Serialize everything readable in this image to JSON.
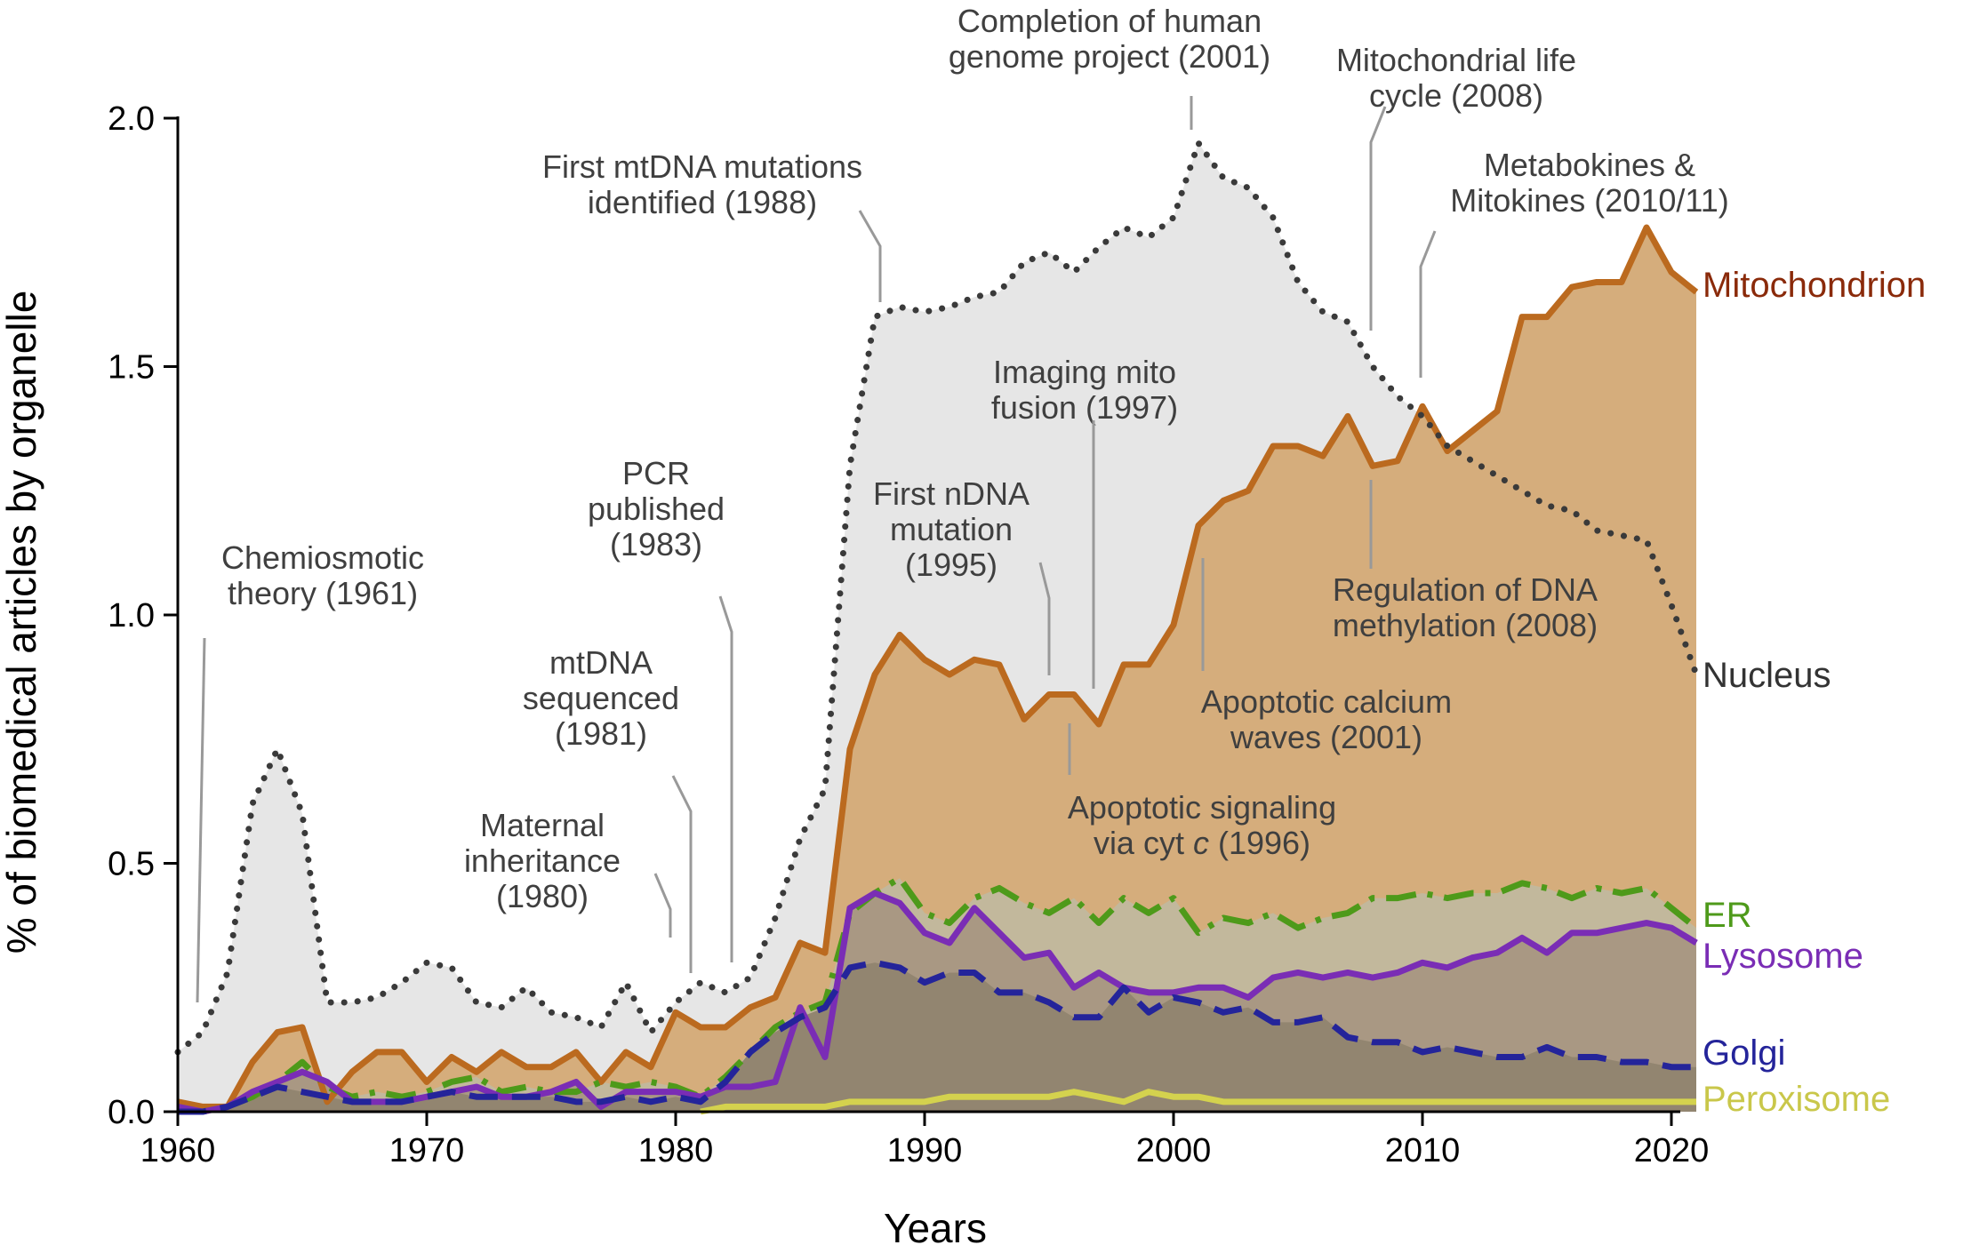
{
  "chart_data": {
    "type": "area",
    "xlabel": "Years",
    "ylabel": "% of biomedical articles by organelle",
    "xlim": [
      1960,
      2021
    ],
    "ylim": [
      0,
      2.0
    ],
    "x_ticks": [
      "1960",
      "1970",
      "1980",
      "1990",
      "2000",
      "2010",
      "2020"
    ],
    "y_ticks": [
      "0.0",
      "0.5",
      "1.0",
      "1.5",
      "2.0"
    ],
    "grid": false,
    "series": [
      {
        "name": "Nucleus",
        "color": "#3a3a3a",
        "style": "dotted",
        "fill": "#e6e6e6",
        "x": [
          1960,
          1961,
          1962,
          1963,
          1964,
          1965,
          1966,
          1967,
          1968,
          1969,
          1970,
          1971,
          1972,
          1973,
          1974,
          1975,
          1976,
          1977,
          1978,
          1979,
          1980,
          1981,
          1982,
          1983,
          1984,
          1985,
          1986,
          1987,
          1988,
          1989,
          1990,
          1991,
          1992,
          1993,
          1994,
          1995,
          1996,
          1997,
          1998,
          1999,
          2000,
          2001,
          2002,
          2003,
          2004,
          2005,
          2006,
          2007,
          2008,
          2009,
          2010,
          2011,
          2012,
          2013,
          2014,
          2015,
          2016,
          2017,
          2018,
          2019,
          2020,
          2021
        ],
        "values": [
          0.12,
          0.16,
          0.28,
          0.62,
          0.73,
          0.6,
          0.22,
          0.22,
          0.23,
          0.26,
          0.3,
          0.29,
          0.22,
          0.21,
          0.25,
          0.2,
          0.19,
          0.17,
          0.26,
          0.16,
          0.22,
          0.26,
          0.24,
          0.27,
          0.39,
          0.55,
          0.65,
          1.3,
          1.6,
          1.62,
          1.61,
          1.62,
          1.64,
          1.65,
          1.71,
          1.73,
          1.69,
          1.74,
          1.78,
          1.76,
          1.8,
          1.95,
          1.88,
          1.86,
          1.8,
          1.67,
          1.61,
          1.59,
          1.5,
          1.44,
          1.4,
          1.34,
          1.31,
          1.28,
          1.25,
          1.22,
          1.21,
          1.17,
          1.16,
          1.15,
          1.02,
          0.88
        ]
      },
      {
        "name": "Mitochondrion",
        "color": "#bb6a1f",
        "style": "solid",
        "fill": "#d5ad7c",
        "x": [
          1960,
          1961,
          1962,
          1963,
          1964,
          1965,
          1966,
          1967,
          1968,
          1969,
          1970,
          1971,
          1972,
          1973,
          1974,
          1975,
          1976,
          1977,
          1978,
          1979,
          1980,
          1981,
          1982,
          1983,
          1984,
          1985,
          1986,
          1987,
          1988,
          1989,
          1990,
          1991,
          1992,
          1993,
          1994,
          1995,
          1996,
          1997,
          1998,
          1999,
          2000,
          2001,
          2002,
          2003,
          2004,
          2005,
          2006,
          2007,
          2008,
          2009,
          2010,
          2011,
          2012,
          2013,
          2014,
          2015,
          2016,
          2017,
          2018,
          2019,
          2020,
          2021
        ],
        "values": [
          0.02,
          0.01,
          0.01,
          0.1,
          0.16,
          0.17,
          0.02,
          0.08,
          0.12,
          0.12,
          0.06,
          0.11,
          0.08,
          0.12,
          0.09,
          0.09,
          0.12,
          0.06,
          0.12,
          0.09,
          0.2,
          0.17,
          0.17,
          0.21,
          0.23,
          0.34,
          0.32,
          0.73,
          0.88,
          0.96,
          0.91,
          0.88,
          0.91,
          0.9,
          0.79,
          0.84,
          0.84,
          0.78,
          0.9,
          0.9,
          0.98,
          1.18,
          1.23,
          1.25,
          1.34,
          1.34,
          1.32,
          1.4,
          1.3,
          1.31,
          1.42,
          1.33,
          1.37,
          1.41,
          1.6,
          1.6,
          1.66,
          1.67,
          1.67,
          1.78,
          1.69,
          1.65
        ]
      },
      {
        "name": "ER",
        "color": "#4e9a1a",
        "style": "dashdot",
        "fill": "#c2b89c",
        "x": [
          1960,
          1961,
          1962,
          1963,
          1964,
          1965,
          1966,
          1967,
          1968,
          1969,
          1970,
          1971,
          1972,
          1973,
          1974,
          1975,
          1976,
          1977,
          1978,
          1979,
          1980,
          1981,
          1982,
          1983,
          1984,
          1985,
          1986,
          1987,
          1988,
          1989,
          1990,
          1991,
          1992,
          1993,
          1994,
          1995,
          1996,
          1997,
          1998,
          1999,
          2000,
          2001,
          2002,
          2003,
          2004,
          2005,
          2006,
          2007,
          2008,
          2009,
          2010,
          2011,
          2012,
          2013,
          2014,
          2015,
          2016,
          2017,
          2018,
          2019,
          2020,
          2021
        ],
        "values": [
          0.0,
          0.0,
          0.01,
          0.03,
          0.06,
          0.1,
          0.05,
          0.03,
          0.04,
          0.03,
          0.04,
          0.06,
          0.07,
          0.04,
          0.05,
          0.04,
          0.04,
          0.06,
          0.05,
          0.06,
          0.05,
          0.03,
          0.07,
          0.12,
          0.17,
          0.2,
          0.22,
          0.4,
          0.44,
          0.47,
          0.4,
          0.38,
          0.43,
          0.45,
          0.42,
          0.4,
          0.43,
          0.38,
          0.43,
          0.4,
          0.43,
          0.36,
          0.39,
          0.38,
          0.4,
          0.37,
          0.39,
          0.4,
          0.43,
          0.43,
          0.44,
          0.43,
          0.44,
          0.44,
          0.46,
          0.45,
          0.43,
          0.45,
          0.44,
          0.45,
          0.41,
          0.37
        ]
      },
      {
        "name": "Lysosome",
        "color": "#7a2db5",
        "style": "solid",
        "fill": "#a99883",
        "x": [
          1960,
          1961,
          1962,
          1963,
          1964,
          1965,
          1966,
          1967,
          1968,
          1969,
          1970,
          1971,
          1972,
          1973,
          1974,
          1975,
          1976,
          1977,
          1978,
          1979,
          1980,
          1981,
          1982,
          1983,
          1984,
          1985,
          1986,
          1987,
          1988,
          1989,
          1990,
          1991,
          1992,
          1993,
          1994,
          1995,
          1996,
          1997,
          1998,
          1999,
          2000,
          2001,
          2002,
          2003,
          2004,
          2005,
          2006,
          2007,
          2008,
          2009,
          2010,
          2011,
          2012,
          2013,
          2014,
          2015,
          2016,
          2017,
          2018,
          2019,
          2020,
          2021
        ],
        "values": [
          0.01,
          0.0,
          0.01,
          0.04,
          0.06,
          0.08,
          0.06,
          0.02,
          0.02,
          0.02,
          0.03,
          0.04,
          0.05,
          0.03,
          0.03,
          0.04,
          0.06,
          0.01,
          0.04,
          0.04,
          0.04,
          0.03,
          0.05,
          0.05,
          0.06,
          0.21,
          0.11,
          0.41,
          0.44,
          0.42,
          0.36,
          0.34,
          0.41,
          0.36,
          0.31,
          0.32,
          0.25,
          0.28,
          0.25,
          0.24,
          0.24,
          0.25,
          0.25,
          0.23,
          0.27,
          0.28,
          0.27,
          0.28,
          0.27,
          0.28,
          0.3,
          0.29,
          0.31,
          0.32,
          0.35,
          0.32,
          0.36,
          0.36,
          0.37,
          0.38,
          0.37,
          0.34
        ]
      },
      {
        "name": "Golgi",
        "color": "#24249a",
        "style": "dashed",
        "fill": "#928570",
        "x": [
          1960,
          1961,
          1962,
          1963,
          1964,
          1965,
          1966,
          1967,
          1968,
          1969,
          1970,
          1971,
          1972,
          1973,
          1974,
          1975,
          1976,
          1977,
          1978,
          1979,
          1980,
          1981,
          1982,
          1983,
          1984,
          1985,
          1986,
          1987,
          1988,
          1989,
          1990,
          1991,
          1992,
          1993,
          1994,
          1995,
          1996,
          1997,
          1998,
          1999,
          2000,
          2001,
          2002,
          2003,
          2004,
          2005,
          2006,
          2007,
          2008,
          2009,
          2010,
          2011,
          2012,
          2013,
          2014,
          2015,
          2016,
          2017,
          2018,
          2019,
          2020,
          2021
        ],
        "values": [
          0.0,
          0.0,
          0.01,
          0.03,
          0.05,
          0.04,
          0.03,
          0.02,
          0.02,
          0.02,
          0.03,
          0.04,
          0.03,
          0.03,
          0.03,
          0.03,
          0.02,
          0.02,
          0.03,
          0.02,
          0.03,
          0.02,
          0.06,
          0.12,
          0.16,
          0.19,
          0.21,
          0.29,
          0.3,
          0.29,
          0.26,
          0.28,
          0.28,
          0.24,
          0.24,
          0.22,
          0.19,
          0.19,
          0.25,
          0.2,
          0.23,
          0.22,
          0.2,
          0.21,
          0.18,
          0.18,
          0.19,
          0.15,
          0.14,
          0.14,
          0.12,
          0.13,
          0.12,
          0.11,
          0.11,
          0.13,
          0.11,
          0.11,
          0.1,
          0.1,
          0.09,
          0.09
        ]
      },
      {
        "name": "Peroxisome",
        "color": "#d4d24e",
        "style": "solid",
        "fill": "none",
        "x": [
          1981,
          1982,
          1983,
          1984,
          1985,
          1986,
          1987,
          1988,
          1989,
          1990,
          1991,
          1992,
          1993,
          1994,
          1995,
          1996,
          1997,
          1998,
          1999,
          2000,
          2001,
          2002,
          2003,
          2004,
          2005,
          2006,
          2007,
          2008,
          2009,
          2010,
          2011,
          2012,
          2013,
          2014,
          2015,
          2016,
          2017,
          2018,
          2019,
          2020,
          2021
        ],
        "values": [
          0.0,
          0.01,
          0.01,
          0.01,
          0.01,
          0.01,
          0.02,
          0.02,
          0.02,
          0.02,
          0.03,
          0.03,
          0.03,
          0.03,
          0.03,
          0.04,
          0.03,
          0.02,
          0.04,
          0.03,
          0.03,
          0.02,
          0.02,
          0.02,
          0.02,
          0.02,
          0.02,
          0.02,
          0.02,
          0.02,
          0.02,
          0.02,
          0.02,
          0.02,
          0.02,
          0.02,
          0.02,
          0.02,
          0.02,
          0.02,
          0.02
        ]
      }
    ],
    "annotations": [
      {
        "lines": [
          "Chemiosmotic",
          "theory (1961)"
        ],
        "year": 1961,
        "y": 0.2
      },
      {
        "lines": [
          "Maternal",
          "inheritance",
          "(1980)"
        ],
        "year": 1980,
        "y": 0.22
      },
      {
        "lines": [
          "mtDNA",
          "sequenced",
          "(1981)"
        ],
        "year": 1981,
        "y": 0.26
      },
      {
        "lines": [
          "PCR",
          "published",
          "(1983)"
        ],
        "year": 1982.5,
        "y": 0.28
      },
      {
        "lines": [
          "First mtDNA mutations",
          "identified (1988)"
        ],
        "year": 1988,
        "y": 1.6
      },
      {
        "lines": [
          "Completion of human",
          "genome project (2001)"
        ],
        "year": 2001,
        "y": 1.97
      },
      {
        "lines": [
          "First nDNA",
          "mutation",
          "(1995)"
        ],
        "year": 1995,
        "y": 0.88
      },
      {
        "lines": [
          "Imaging mito",
          "fusion (1997)"
        ],
        "year": 1997,
        "y": 0.85
      },
      {
        "lines": [
          "Mitochondrial life",
          "cycle (2008)"
        ],
        "year": 2008,
        "y": 1.6
      },
      {
        "lines": [
          "Metabokines &",
          "Mitokines (2010/11)"
        ],
        "year": 2010,
        "y": 1.45
      },
      {
        "lines": [
          "Regulation of DNA",
          "methylation (2008)"
        ],
        "year": 2008,
        "y": 1.27
      },
      {
        "lines": [
          "Apoptotic calcium",
          "waves (2001)"
        ],
        "year": 2001,
        "y": 1.12
      },
      {
        "lines": [
          "Apoptotic signaling",
          "via cyt c (1996)"
        ],
        "year": 1996,
        "y": 0.8
      }
    ]
  }
}
